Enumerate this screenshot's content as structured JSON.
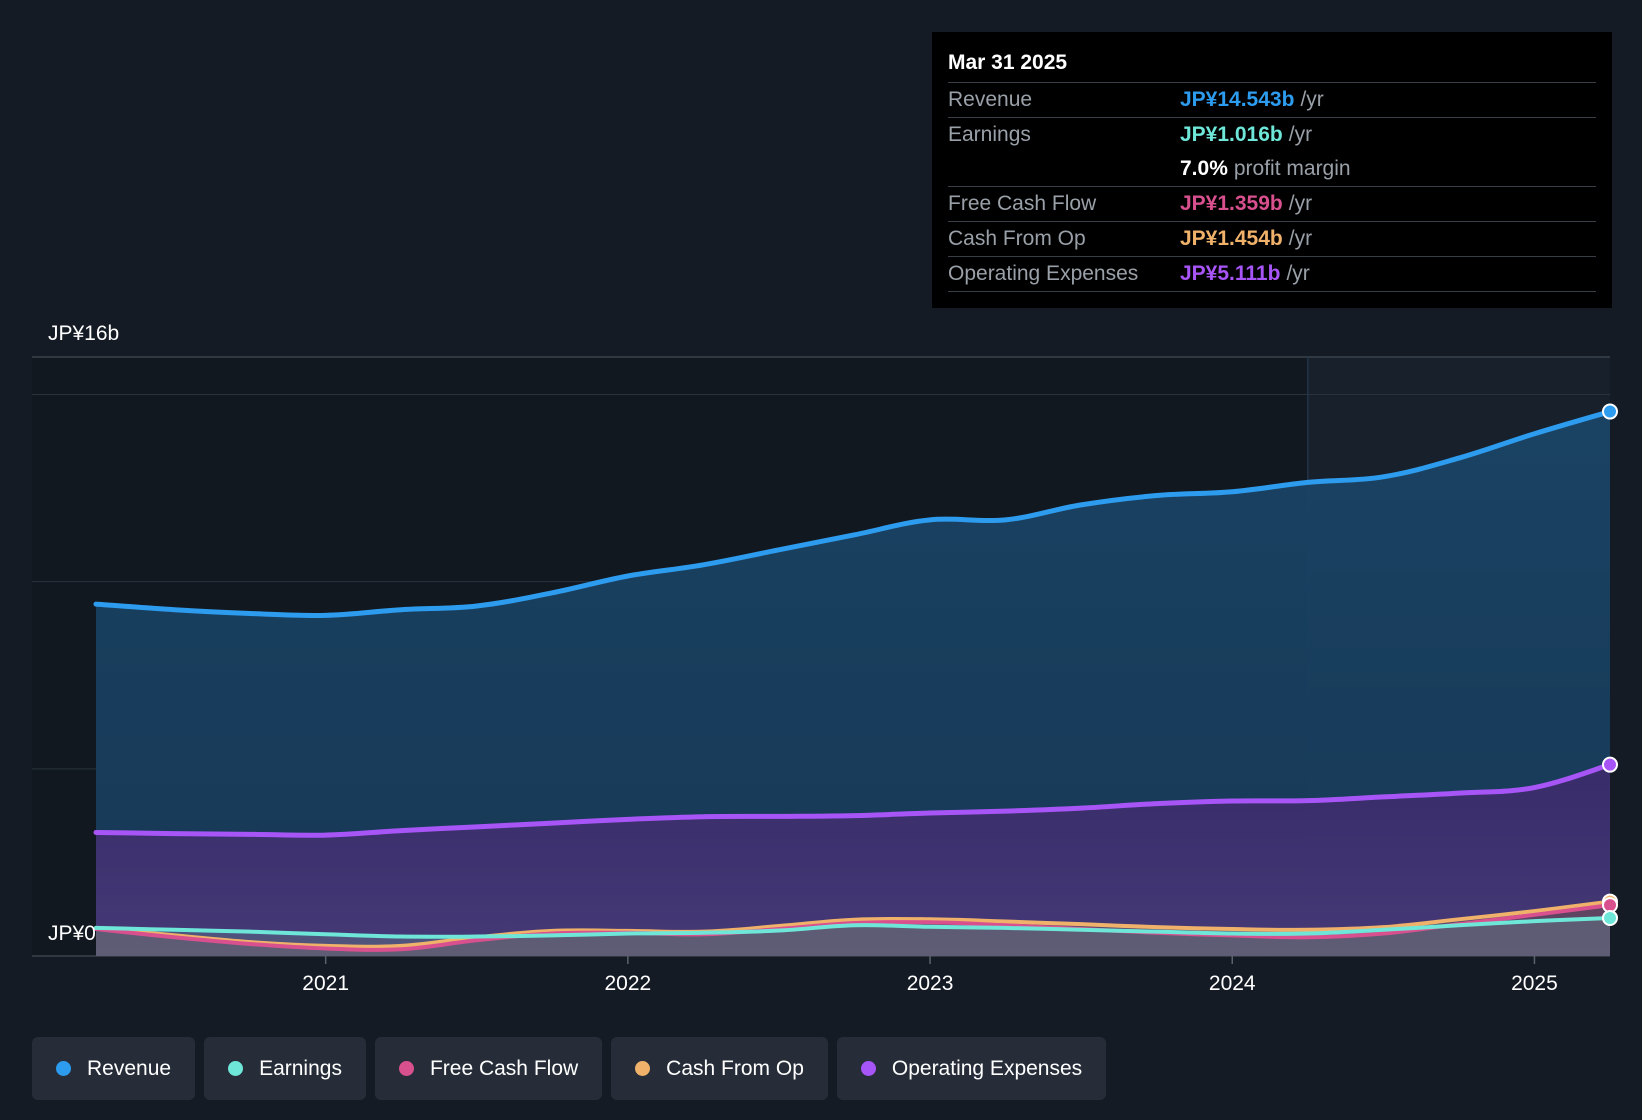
{
  "tooltip": {
    "date": "Mar 31 2025",
    "rows": [
      {
        "label": "Revenue",
        "value": "JP¥14.543b",
        "unit": "/yr",
        "color": "#2d9cef"
      },
      {
        "label": "Earnings",
        "value": "JP¥1.016b",
        "unit": "/yr",
        "color": "#6ee7d9"
      },
      {
        "label": "",
        "value": "7.0%",
        "unit": "profit margin",
        "color": "#ffffff"
      },
      {
        "label": "Free Cash Flow",
        "value": "JP¥1.359b",
        "unit": "/yr",
        "color": "#d9508f"
      },
      {
        "label": "Cash From Op",
        "value": "JP¥1.454b",
        "unit": "/yr",
        "color": "#f0b26a"
      },
      {
        "label": "Operating Expenses",
        "value": "JP¥5.111b",
        "unit": "/yr",
        "color": "#a855f7"
      }
    ]
  },
  "legend": [
    {
      "label": "Revenue",
      "color": "#2d9cef"
    },
    {
      "label": "Earnings",
      "color": "#6ee7d9"
    },
    {
      "label": "Free Cash Flow",
      "color": "#d9508f"
    },
    {
      "label": "Cash From Op",
      "color": "#f0b26a"
    },
    {
      "label": "Operating Expenses",
      "color": "#a855f7"
    }
  ],
  "chart_data": {
    "type": "area",
    "y_top_label": "JP¥16b",
    "y_zero_label": "JP¥0",
    "ylim": [
      0,
      16
    ],
    "xlim": [
      2020.24,
      2025.25
    ],
    "x_ticks": [
      2021,
      2022,
      2023,
      2024,
      2025
    ],
    "x_tick_labels": [
      "2021",
      "2022",
      "2023",
      "2024",
      "2025"
    ],
    "forecast_start": 2024.25,
    "series": [
      {
        "name": "Revenue",
        "color": "#2d9cef",
        "points": [
          [
            2020.24,
            9.4
          ],
          [
            2020.5,
            9.25
          ],
          [
            2020.75,
            9.15
          ],
          [
            2021.0,
            9.1
          ],
          [
            2021.25,
            9.25
          ],
          [
            2021.5,
            9.35
          ],
          [
            2021.75,
            9.7
          ],
          [
            2022.0,
            10.15
          ],
          [
            2022.25,
            10.45
          ],
          [
            2022.5,
            10.85
          ],
          [
            2022.75,
            11.25
          ],
          [
            2023.0,
            11.65
          ],
          [
            2023.25,
            11.65
          ],
          [
            2023.5,
            12.05
          ],
          [
            2023.75,
            12.3
          ],
          [
            2024.0,
            12.4
          ],
          [
            2024.25,
            12.65
          ],
          [
            2024.5,
            12.8
          ],
          [
            2024.75,
            13.3
          ],
          [
            2025.0,
            13.95
          ],
          [
            2025.25,
            14.543
          ]
        ]
      },
      {
        "name": "Operating Expenses",
        "color": "#a855f7",
        "points": [
          [
            2020.24,
            3.3
          ],
          [
            2020.5,
            3.27
          ],
          [
            2020.75,
            3.25
          ],
          [
            2021.0,
            3.23
          ],
          [
            2021.25,
            3.35
          ],
          [
            2021.5,
            3.45
          ],
          [
            2021.75,
            3.55
          ],
          [
            2022.0,
            3.65
          ],
          [
            2022.25,
            3.72
          ],
          [
            2022.5,
            3.73
          ],
          [
            2022.75,
            3.75
          ],
          [
            2023.0,
            3.82
          ],
          [
            2023.25,
            3.87
          ],
          [
            2023.5,
            3.95
          ],
          [
            2023.75,
            4.07
          ],
          [
            2024.0,
            4.14
          ],
          [
            2024.25,
            4.15
          ],
          [
            2024.5,
            4.25
          ],
          [
            2024.75,
            4.35
          ],
          [
            2025.0,
            4.5
          ],
          [
            2025.25,
            5.111
          ]
        ]
      },
      {
        "name": "Cash From Op",
        "color": "#f0b26a",
        "points": [
          [
            2020.24,
            0.75
          ],
          [
            2020.5,
            0.55
          ],
          [
            2020.75,
            0.37
          ],
          [
            2021.0,
            0.27
          ],
          [
            2021.25,
            0.27
          ],
          [
            2021.5,
            0.5
          ],
          [
            2021.75,
            0.67
          ],
          [
            2022.0,
            0.67
          ],
          [
            2022.25,
            0.65
          ],
          [
            2022.5,
            0.8
          ],
          [
            2022.75,
            0.97
          ],
          [
            2023.0,
            0.98
          ],
          [
            2023.25,
            0.92
          ],
          [
            2023.5,
            0.85
          ],
          [
            2023.75,
            0.77
          ],
          [
            2024.0,
            0.72
          ],
          [
            2024.25,
            0.7
          ],
          [
            2024.5,
            0.77
          ],
          [
            2024.75,
            0.98
          ],
          [
            2025.0,
            1.2
          ],
          [
            2025.25,
            1.454
          ]
        ]
      },
      {
        "name": "Free Cash Flow",
        "color": "#d9508f",
        "points": [
          [
            2020.24,
            0.72
          ],
          [
            2020.5,
            0.5
          ],
          [
            2020.75,
            0.32
          ],
          [
            2021.0,
            0.2
          ],
          [
            2021.25,
            0.18
          ],
          [
            2021.5,
            0.42
          ],
          [
            2021.75,
            0.6
          ],
          [
            2022.0,
            0.62
          ],
          [
            2022.25,
            0.58
          ],
          [
            2022.5,
            0.72
          ],
          [
            2022.75,
            0.88
          ],
          [
            2023.0,
            0.9
          ],
          [
            2023.25,
            0.82
          ],
          [
            2023.5,
            0.72
          ],
          [
            2023.75,
            0.62
          ],
          [
            2024.0,
            0.55
          ],
          [
            2024.25,
            0.5
          ],
          [
            2024.5,
            0.6
          ],
          [
            2024.75,
            0.85
          ],
          [
            2025.0,
            1.1
          ],
          [
            2025.25,
            1.359
          ]
        ]
      },
      {
        "name": "Earnings",
        "color": "#6ee7d9",
        "points": [
          [
            2020.24,
            0.75
          ],
          [
            2020.5,
            0.7
          ],
          [
            2020.75,
            0.65
          ],
          [
            2021.0,
            0.58
          ],
          [
            2021.25,
            0.52
          ],
          [
            2021.5,
            0.52
          ],
          [
            2021.75,
            0.55
          ],
          [
            2022.0,
            0.6
          ],
          [
            2022.25,
            0.62
          ],
          [
            2022.5,
            0.68
          ],
          [
            2022.75,
            0.82
          ],
          [
            2023.0,
            0.78
          ],
          [
            2023.25,
            0.75
          ],
          [
            2023.5,
            0.7
          ],
          [
            2023.75,
            0.65
          ],
          [
            2024.0,
            0.6
          ],
          [
            2024.25,
            0.6
          ],
          [
            2024.5,
            0.7
          ],
          [
            2024.75,
            0.82
          ],
          [
            2025.0,
            0.93
          ],
          [
            2025.25,
            1.016
          ]
        ]
      }
    ]
  }
}
